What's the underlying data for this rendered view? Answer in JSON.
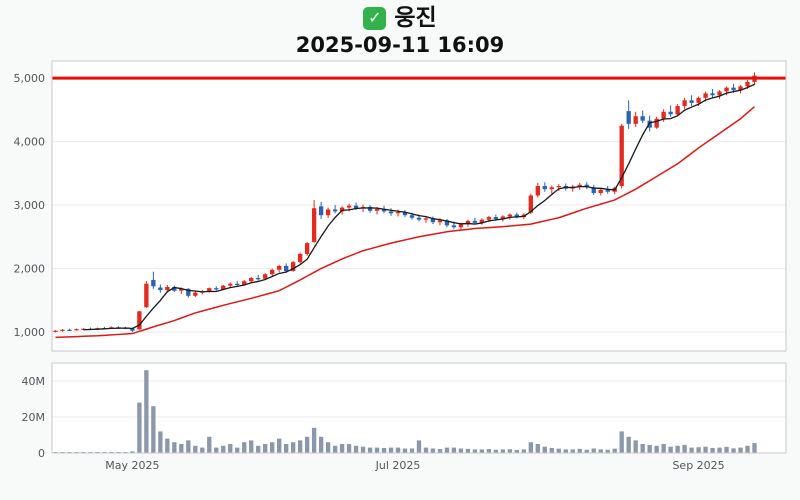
{
  "header": {
    "check_glyph": "✓",
    "title": "웅진",
    "datetime": "2025-09-11 16:09"
  },
  "colors": {
    "up": "#e22a20",
    "down": "#2a62b8",
    "ma_short": "#1a1a1a",
    "ma_long": "#e01713",
    "price_line": "#ee0e08",
    "grid": "#ebebee",
    "panel_border": "#c9c9cf",
    "panel_bg": "#ffffff",
    "axis_text": "#55555c",
    "volume_bar": "#8b97aa"
  },
  "chart_data": {
    "type": "candlestick+volume",
    "title": "웅진",
    "datetime_label": "2025-09-11 16:09",
    "legend_position": "none",
    "grid": true,
    "price_axis": {
      "range": [
        700,
        5270
      ],
      "ticks": [
        1000,
        2000,
        3000,
        4000,
        5000
      ],
      "tick_labels": [
        "1,000",
        "2,000",
        "3,000",
        "4,000",
        "5,000"
      ]
    },
    "volume_axis": {
      "range_millions": [
        0,
        50
      ],
      "ticks_millions": [
        0,
        20,
        40
      ],
      "tick_labels": [
        "0",
        "20M",
        "40M"
      ]
    },
    "x_ticks": [
      {
        "index": 11,
        "label": "May 2025"
      },
      {
        "index": 49,
        "label": "Jul 2025"
      },
      {
        "index": 92,
        "label": "Sep 2025"
      }
    ],
    "price_line_value": 5000,
    "ma_short_period": 5,
    "ma_long_points": [
      [
        0,
        915
      ],
      [
        6,
        940
      ],
      [
        11,
        975
      ],
      [
        14,
        1080
      ],
      [
        17,
        1180
      ],
      [
        20,
        1300
      ],
      [
        24,
        1420
      ],
      [
        28,
        1530
      ],
      [
        32,
        1650
      ],
      [
        35,
        1820
      ],
      [
        38,
        2000
      ],
      [
        41,
        2150
      ],
      [
        44,
        2280
      ],
      [
        48,
        2400
      ],
      [
        52,
        2500
      ],
      [
        56,
        2580
      ],
      [
        60,
        2630
      ],
      [
        64,
        2660
      ],
      [
        68,
        2700
      ],
      [
        72,
        2800
      ],
      [
        76,
        2950
      ],
      [
        80,
        3080
      ],
      [
        83,
        3250
      ],
      [
        86,
        3450
      ],
      [
        89,
        3650
      ],
      [
        92,
        3900
      ],
      [
        95,
        4130
      ],
      [
        98,
        4360
      ],
      [
        100,
        4550
      ]
    ],
    "volume_unit": 1000000,
    "candles_format": [
      "open",
      "high",
      "low",
      "close",
      "volume_millions"
    ],
    "candles": [
      [
        1010,
        1030,
        995,
        1020,
        0.5
      ],
      [
        1020,
        1045,
        1005,
        1035,
        0.4
      ],
      [
        1035,
        1050,
        1015,
        1025,
        0.3
      ],
      [
        1025,
        1055,
        1020,
        1045,
        0.5
      ],
      [
        1045,
        1060,
        1030,
        1050,
        0.4
      ],
      [
        1050,
        1070,
        1035,
        1040,
        0.3
      ],
      [
        1040,
        1070,
        1035,
        1060,
        0.5
      ],
      [
        1060,
        1080,
        1045,
        1055,
        0.4
      ],
      [
        1055,
        1085,
        1050,
        1075,
        0.6
      ],
      [
        1075,
        1090,
        1055,
        1065,
        0.4
      ],
      [
        1065,
        1080,
        1050,
        1060,
        0.5
      ],
      [
        1055,
        1065,
        1000,
        1020,
        0.9
      ],
      [
        1040,
        1330,
        1035,
        1325,
        28
      ],
      [
        1390,
        1800,
        1380,
        1760,
        46
      ],
      [
        1820,
        1950,
        1680,
        1720,
        26
      ],
      [
        1700,
        1750,
        1620,
        1660,
        12
      ],
      [
        1660,
        1740,
        1640,
        1710,
        8
      ],
      [
        1710,
        1730,
        1630,
        1650,
        6
      ],
      [
        1650,
        1700,
        1600,
        1680,
        5
      ],
      [
        1680,
        1690,
        1540,
        1570,
        7
      ],
      [
        1570,
        1640,
        1550,
        1620,
        4
      ],
      [
        1620,
        1660,
        1590,
        1640,
        3
      ],
      [
        1640,
        1700,
        1620,
        1690,
        9
      ],
      [
        1690,
        1720,
        1650,
        1670,
        3
      ],
      [
        1670,
        1740,
        1660,
        1730,
        4
      ],
      [
        1730,
        1780,
        1700,
        1760,
        5
      ],
      [
        1760,
        1800,
        1720,
        1740,
        3
      ],
      [
        1740,
        1820,
        1730,
        1800,
        6
      ],
      [
        1800,
        1870,
        1780,
        1850,
        7
      ],
      [
        1850,
        1900,
        1810,
        1830,
        4
      ],
      [
        1840,
        1930,
        1820,
        1910,
        5
      ],
      [
        1910,
        2000,
        1880,
        1980,
        6
      ],
      [
        1980,
        2060,
        1940,
        2040,
        8
      ],
      [
        2040,
        2080,
        1930,
        1960,
        5
      ],
      [
        1960,
        2120,
        1950,
        2100,
        6
      ],
      [
        2100,
        2250,
        2080,
        2230,
        7
      ],
      [
        2230,
        2420,
        2200,
        2400,
        9
      ],
      [
        2420,
        3080,
        2400,
        2950,
        14
      ],
      [
        2980,
        3050,
        2780,
        2840,
        9
      ],
      [
        2840,
        2960,
        2800,
        2930,
        6
      ],
      [
        2930,
        3000,
        2870,
        2900,
        4
      ],
      [
        2900,
        2980,
        2850,
        2960,
        5
      ],
      [
        2960,
        3020,
        2900,
        2990,
        5
      ],
      [
        2990,
        3040,
        2920,
        2950,
        4
      ],
      [
        2950,
        3010,
        2890,
        2970,
        3.5
      ],
      [
        2970,
        3000,
        2880,
        2910,
        3
      ],
      [
        2910,
        2970,
        2850,
        2940,
        3
      ],
      [
        2940,
        2990,
        2870,
        2900,
        2.8
      ],
      [
        2900,
        2950,
        2830,
        2870,
        3
      ],
      [
        2870,
        2930,
        2820,
        2890,
        3
      ],
      [
        2890,
        2920,
        2810,
        2840,
        2.5
      ],
      [
        2840,
        2880,
        2770,
        2800,
        2.5
      ],
      [
        2800,
        2850,
        2740,
        2770,
        7
      ],
      [
        2770,
        2830,
        2720,
        2790,
        3
      ],
      [
        2790,
        2820,
        2700,
        2730,
        2.5
      ],
      [
        2730,
        2790,
        2680,
        2760,
        2.2
      ],
      [
        2760,
        2780,
        2650,
        2680,
        3
      ],
      [
        2680,
        2740,
        2620,
        2650,
        3
      ],
      [
        2650,
        2720,
        2600,
        2700,
        2.5
      ],
      [
        2700,
        2770,
        2660,
        2750,
        2.3
      ],
      [
        2750,
        2800,
        2700,
        2720,
        2
      ],
      [
        2720,
        2790,
        2690,
        2770,
        2
      ],
      [
        2770,
        2830,
        2730,
        2810,
        2.2
      ],
      [
        2810,
        2850,
        2750,
        2780,
        1.8
      ],
      [
        2780,
        2840,
        2740,
        2820,
        2
      ],
      [
        2820,
        2870,
        2770,
        2850,
        2.1
      ],
      [
        2850,
        2880,
        2790,
        2810,
        1.7
      ],
      [
        2810,
        2870,
        2780,
        2850,
        2
      ],
      [
        2880,
        3180,
        2860,
        3150,
        6
      ],
      [
        3150,
        3350,
        3120,
        3300,
        5
      ],
      [
        3300,
        3360,
        3210,
        3250,
        3.5
      ],
      [
        3250,
        3310,
        3180,
        3280,
        2.8
      ],
      [
        3280,
        3330,
        3220,
        3300,
        2.4
      ],
      [
        3300,
        3340,
        3230,
        3260,
        2
      ],
      [
        3260,
        3320,
        3210,
        3290,
        2
      ],
      [
        3290,
        3350,
        3240,
        3320,
        2.3
      ],
      [
        3320,
        3360,
        3250,
        3280,
        1.8
      ],
      [
        3280,
        3320,
        3160,
        3190,
        2.5
      ],
      [
        3190,
        3270,
        3150,
        3240,
        2
      ],
      [
        3240,
        3300,
        3180,
        3210,
        1.8
      ],
      [
        3210,
        3290,
        3170,
        3270,
        2.4
      ],
      [
        3300,
        4280,
        3260,
        4250,
        12
      ],
      [
        4480,
        4650,
        4200,
        4280,
        9
      ],
      [
        4280,
        4470,
        4230,
        4400,
        7
      ],
      [
        4400,
        4490,
        4290,
        4330,
        5
      ],
      [
        4330,
        4410,
        4160,
        4220,
        4.5
      ],
      [
        4220,
        4390,
        4200,
        4360,
        4
      ],
      [
        4360,
        4510,
        4310,
        4470,
        5
      ],
      [
        4470,
        4570,
        4390,
        4430,
        3.5
      ],
      [
        4430,
        4590,
        4410,
        4560,
        4
      ],
      [
        4560,
        4690,
        4510,
        4650,
        4.5
      ],
      [
        4650,
        4730,
        4560,
        4610,
        3
      ],
      [
        4610,
        4710,
        4560,
        4690,
        3.2
      ],
      [
        4690,
        4790,
        4630,
        4760,
        3.5
      ],
      [
        4760,
        4830,
        4690,
        4730,
        2.8
      ],
      [
        4730,
        4810,
        4670,
        4790,
        3
      ],
      [
        4790,
        4870,
        4730,
        4850,
        3.4
      ],
      [
        4850,
        4910,
        4770,
        4810,
        2.6
      ],
      [
        4810,
        4890,
        4760,
        4870,
        3
      ],
      [
        4870,
        4970,
        4830,
        4940,
        4
      ],
      [
        4940,
        5090,
        4890,
        5040,
        5.5
      ]
    ]
  }
}
